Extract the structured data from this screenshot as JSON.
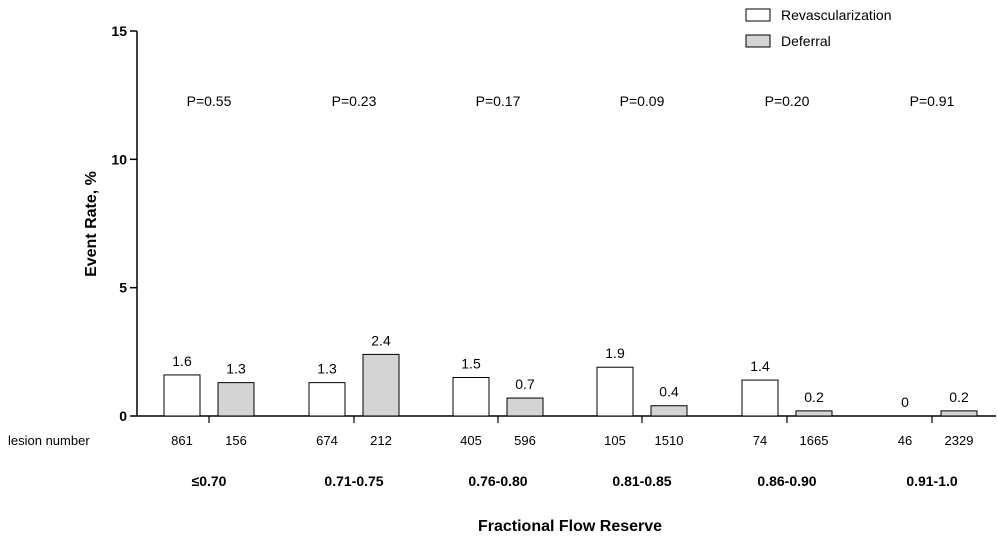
{
  "chart_data": {
    "type": "bar",
    "ylabel": "Event Rate, %",
    "xlabel": "Fractional Flow Reserve",
    "ylim": [
      0,
      15
    ],
    "yticks": [
      "0",
      "5",
      "10",
      "15"
    ],
    "grid": false,
    "legend_position": "top-right",
    "legend": [
      "Revascularization",
      "Deferral"
    ],
    "colors": {
      "revascularization": "#ffffff",
      "deferral": "#d4d4d4",
      "stroke": "#000000"
    },
    "row_label": "lesion number",
    "groups": [
      {
        "range": "≤0.70",
        "p_value": "P=0.55",
        "revasc": 1.6,
        "revasc_label": "1.6",
        "deferral": 1.3,
        "deferral_label": "1.3",
        "revasc_lesions": "861",
        "deferral_lesions": "156"
      },
      {
        "range": "0.71-0.75",
        "p_value": "P=0.23",
        "revasc": 1.3,
        "revasc_label": "1.3",
        "deferral": 2.4,
        "deferral_label": "2.4",
        "revasc_lesions": "674",
        "deferral_lesions": "212"
      },
      {
        "range": "0.76-0.80",
        "p_value": "P=0.17",
        "revasc": 1.5,
        "revasc_label": "1.5",
        "deferral": 0.7,
        "deferral_label": "0.7",
        "revasc_lesions": "405",
        "deferral_lesions": "596"
      },
      {
        "range": "0.81-0.85",
        "p_value": "P=0.09",
        "revasc": 1.9,
        "revasc_label": "1.9",
        "deferral": 0.4,
        "deferral_label": "0.4",
        "revasc_lesions": "105",
        "deferral_lesions": "1510"
      },
      {
        "range": "0.86-0.90",
        "p_value": "P=0.20",
        "revasc": 1.4,
        "revasc_label": "1.4",
        "deferral": 0.2,
        "deferral_label": "0.2",
        "revasc_lesions": "74",
        "deferral_lesions": "1665"
      },
      {
        "range": "0.91-1.0",
        "p_value": "P=0.91",
        "revasc": 0,
        "revasc_label": "0",
        "deferral": 0.2,
        "deferral_label": "0.2",
        "revasc_lesions": "46",
        "deferral_lesions": "2329"
      }
    ]
  }
}
